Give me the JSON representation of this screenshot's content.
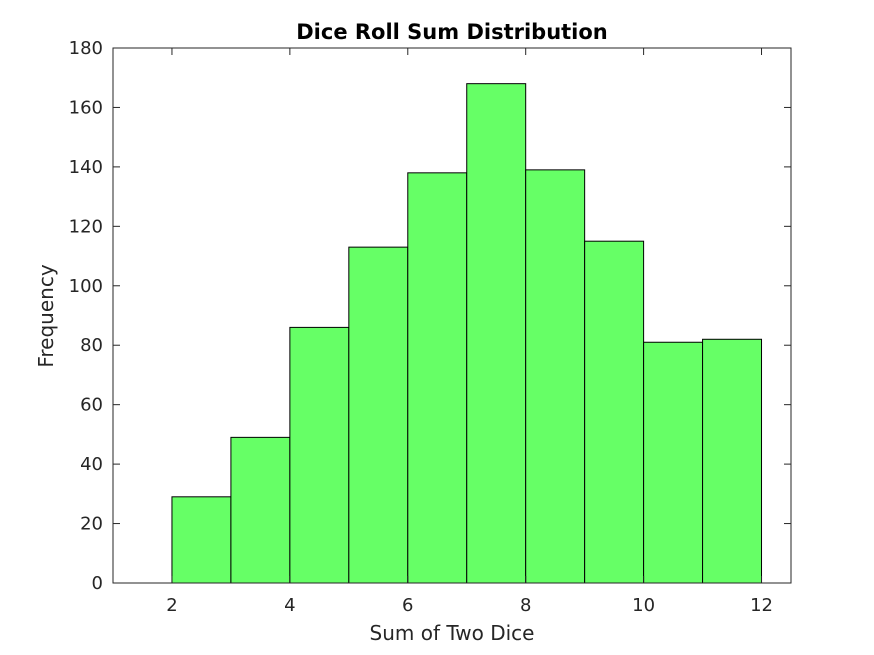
{
  "chart_data": {
    "type": "bar",
    "title": "Dice Roll Sum Distribution",
    "xlabel": "Sum of Two Dice",
    "ylabel": "Frequency",
    "bin_edges": [
      2,
      3,
      4,
      5,
      6,
      7,
      8,
      9,
      10,
      11,
      12
    ],
    "values": [
      29,
      49,
      86,
      113,
      138,
      168,
      139,
      115,
      81,
      82
    ],
    "xlim": [
      1,
      12.5
    ],
    "ylim": [
      0,
      180
    ],
    "xticks": [
      2,
      4,
      6,
      8,
      10,
      12
    ],
    "yticks": [
      0,
      20,
      40,
      60,
      80,
      100,
      120,
      140,
      160,
      180
    ],
    "bar_color": "#66ff66",
    "edge_color": "#000000",
    "grid": false,
    "legend": "none"
  }
}
